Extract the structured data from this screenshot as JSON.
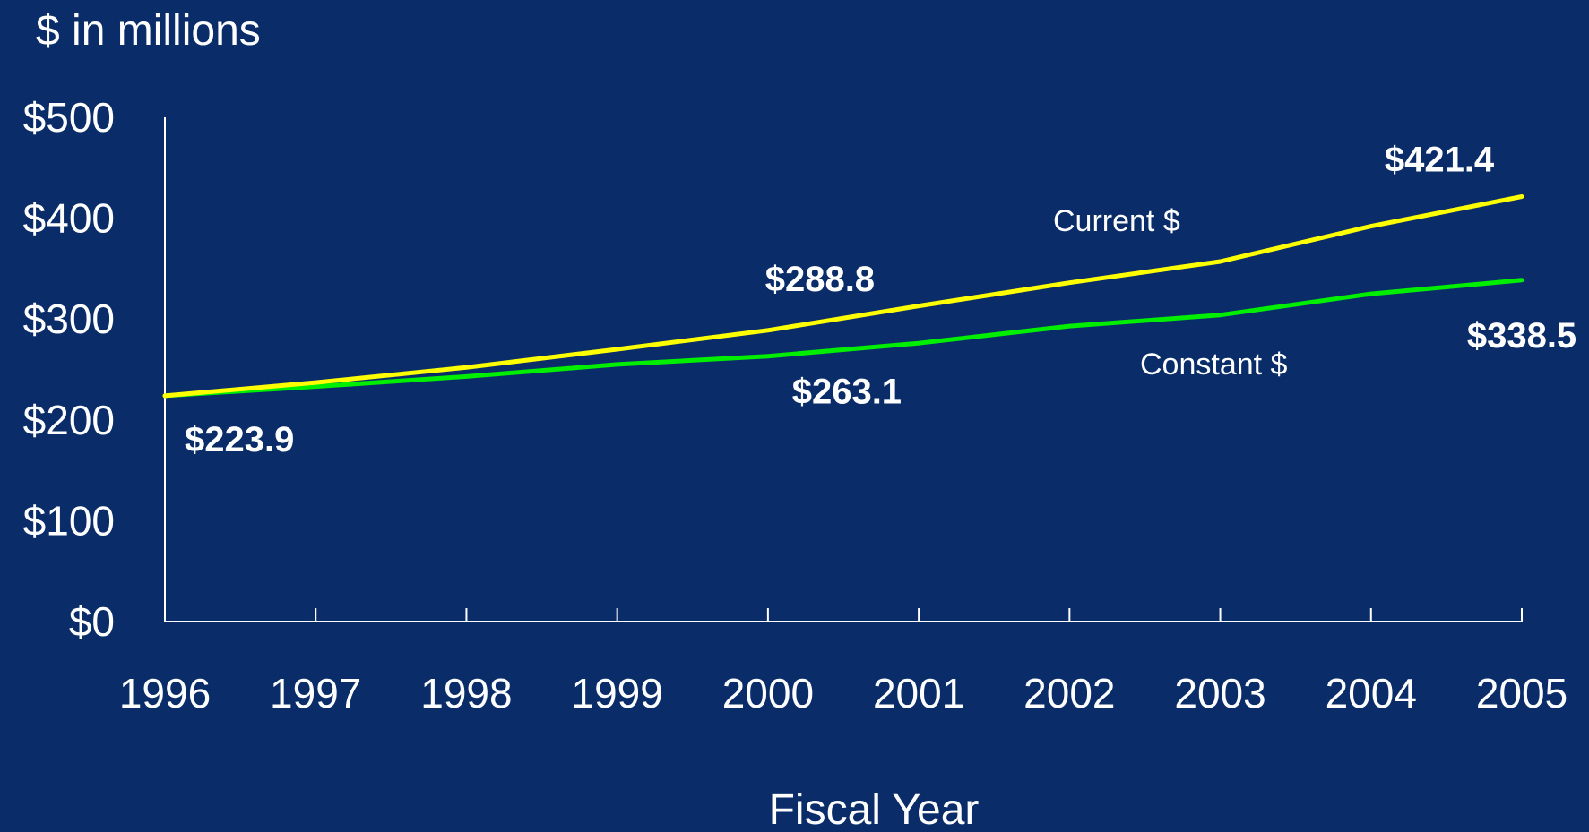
{
  "colors": {
    "background": "#0a2d6a",
    "axis": "#ffffff",
    "current_line": "#ffff00",
    "constant_line": "#00ee00",
    "text": "#ffffff"
  },
  "chart_data": {
    "type": "line",
    "ylabel": "$ in millions",
    "xlabel": "Fiscal Year",
    "ylim": [
      0,
      500
    ],
    "grid": false,
    "y_ticks": [
      {
        "value": 0,
        "label": "$0"
      },
      {
        "value": 100,
        "label": "$100"
      },
      {
        "value": 200,
        "label": "$200"
      },
      {
        "value": 300,
        "label": "$300"
      },
      {
        "value": 400,
        "label": "$400"
      },
      {
        "value": 500,
        "label": "$500"
      }
    ],
    "categories": [
      "1996",
      "1997",
      "1998",
      "1999",
      "2000",
      "2001",
      "2002",
      "2003",
      "2004",
      "2005"
    ],
    "series": [
      {
        "name": "Current $",
        "color": "#ffff00",
        "values": [
          223.9,
          237,
          252,
          270,
          288.8,
          313,
          336,
          357,
          392,
          421.4
        ]
      },
      {
        "name": "Constant $",
        "color": "#00ee00",
        "values": [
          223.9,
          233,
          243,
          255,
          263.1,
          276,
          293,
          304,
          325,
          338.5
        ]
      }
    ],
    "data_labels": [
      {
        "series": 0,
        "index": 0,
        "text": "$223.9"
      },
      {
        "series": 0,
        "index": 4,
        "text": "$288.8"
      },
      {
        "series": 0,
        "index": 9,
        "text": "$421.4"
      },
      {
        "series": 1,
        "index": 4,
        "text": "$263.1"
      },
      {
        "series": 1,
        "index": 9,
        "text": "$338.5"
      }
    ]
  }
}
